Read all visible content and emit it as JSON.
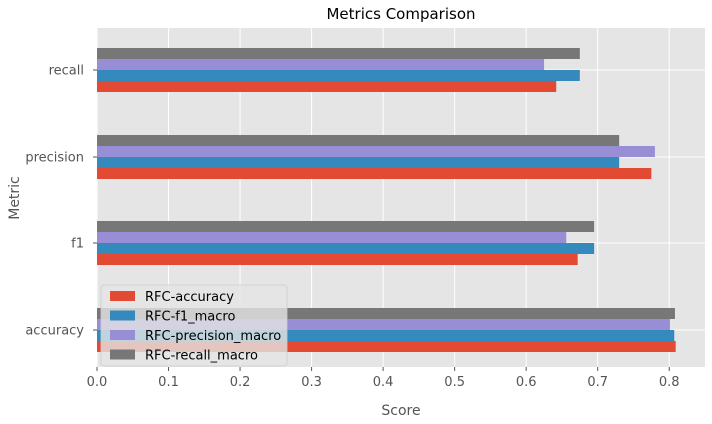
{
  "chart_data": {
    "type": "bar",
    "orientation": "horizontal",
    "title": "Metrics Comparison",
    "xlabel": "Score",
    "ylabel": "Metric",
    "categories": [
      "accuracy",
      "f1",
      "precision",
      "recall"
    ],
    "xlim": [
      0,
      0.85
    ],
    "xticks": [
      0.0,
      0.1,
      0.2,
      0.3,
      0.4,
      0.5,
      0.6,
      0.7,
      0.8
    ],
    "xtick_labels": [
      "0.0",
      "0.1",
      "0.2",
      "0.3",
      "0.4",
      "0.5",
      "0.6",
      "0.7",
      "0.8"
    ],
    "grid": true,
    "legend_position": "lower-left",
    "series": [
      {
        "name": "RFC-accuracy",
        "color": "#E24A33",
        "values": [
          0.809,
          0.672,
          0.775,
          0.642
        ]
      },
      {
        "name": "RFC-f1_macro",
        "color": "#348ABD",
        "values": [
          0.807,
          0.695,
          0.73,
          0.675
        ]
      },
      {
        "name": "RFC-precision_macro",
        "color": "#988ED5",
        "values": [
          0.801,
          0.656,
          0.78,
          0.625
        ]
      },
      {
        "name": "RFC-recall_macro",
        "color": "#777777",
        "values": [
          0.808,
          0.695,
          0.73,
          0.675
        ]
      }
    ]
  }
}
